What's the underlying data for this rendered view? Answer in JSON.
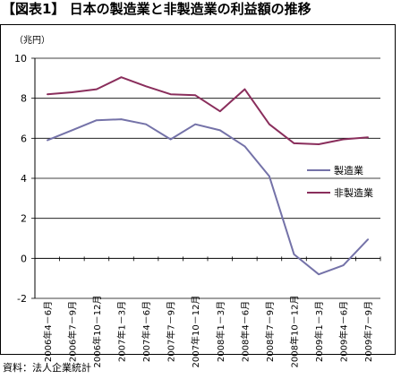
{
  "title": "【図表1】 日本の製造業と非製造業の利益額の推移",
  "unit_label": "（兆円）",
  "source": "資料：法人企業統計",
  "chart_data": {
    "type": "line",
    "title": "【図表1】 日本の製造業と非製造業の利益額の推移",
    "ylabel": "（兆円）",
    "xlabel": "",
    "ylim": [
      -2,
      10
    ],
    "yticks": [
      "10",
      "8",
      "6",
      "4",
      "2",
      "0",
      "-2"
    ],
    "grid": true,
    "legend_position": "right",
    "categories": [
      "2006年4－6月",
      "2006年7－9月",
      "2006年10－12月",
      "2007年1－3月",
      "2007年4－6月",
      "2007年7－9月",
      "2007年10－12月",
      "2008年1－3月",
      "2008年4－6月",
      "2008年7－9月",
      "2008年10－12月",
      "2009年1－3月",
      "2009年4－6月",
      "2009年7－9月"
    ],
    "series": [
      {
        "name": "製造業",
        "color": "#7472a8",
        "values": [
          5.9,
          6.4,
          6.9,
          6.95,
          6.7,
          5.95,
          6.7,
          6.4,
          5.6,
          4.1,
          0.2,
          -0.8,
          -0.35,
          0.95
        ]
      },
      {
        "name": "非製造業",
        "color": "#8a2e5c",
        "values": [
          8.2,
          8.3,
          8.45,
          9.05,
          8.6,
          8.2,
          8.15,
          7.35,
          8.45,
          6.7,
          5.75,
          5.7,
          5.95,
          6.05
        ]
      }
    ]
  }
}
